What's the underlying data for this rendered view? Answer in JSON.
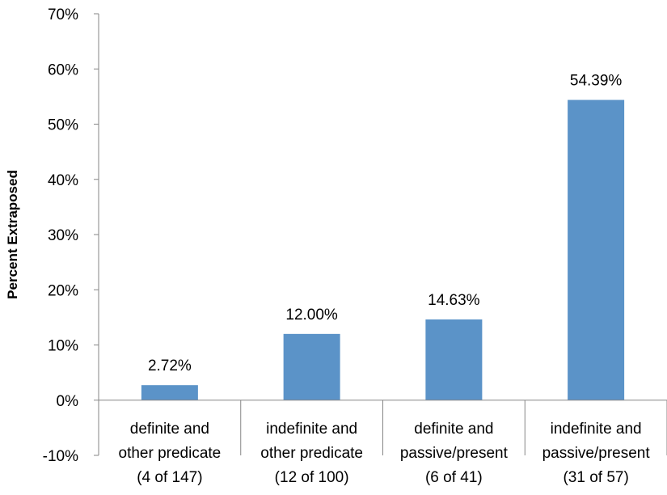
{
  "chart_data": {
    "type": "bar",
    "title": "",
    "xlabel": "",
    "ylabel": "Percent Extraposed",
    "ylim": [
      -0.1,
      0.7
    ],
    "yticks": [
      -0.1,
      0,
      0.1,
      0.2,
      0.3,
      0.4,
      0.5,
      0.6,
      0.7
    ],
    "ytick_labels": [
      "-10%",
      "0%",
      "10%",
      "20%",
      "30%",
      "40%",
      "50%",
      "60%",
      "70%"
    ],
    "grid": false,
    "bar_color": "#5b93c8",
    "categories": [
      [
        "definite and",
        "other predicate",
        "(4 of 147)"
      ],
      [
        "indefinite and",
        "other predicate",
        "(12 of 100)"
      ],
      [
        "definite and",
        "passive/present",
        "(6 of 41)"
      ],
      [
        "indefinite and",
        "passive/present",
        "(31 of 57)"
      ]
    ],
    "values": [
      0.0272,
      0.12,
      0.1463,
      0.5439
    ],
    "data_labels": [
      "2.72%",
      "12.00%",
      "14.63%",
      "54.39%"
    ]
  }
}
